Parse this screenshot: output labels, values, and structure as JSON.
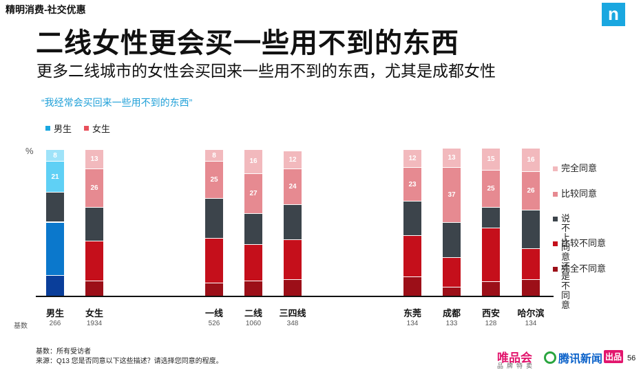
{
  "header": {
    "section_label": "精明消费-社交优惠",
    "logo_text": "n",
    "title": "二线女性更会买一些用不到的东西",
    "subtitle": "更多二线城市的女性会买回来一些用不到的东西，尤其是成都女性",
    "quote": "“我经常会买回来一些用不到的东西”"
  },
  "legend_top": [
    {
      "label": "男生",
      "color": "#1aa7e0"
    },
    {
      "label": "女生",
      "color": "#e8505b"
    }
  ],
  "unit_label": "%",
  "base_label": "基数",
  "colors": {
    "male_strong_disagree": "#0a3e9a",
    "male_somewhat_disagree": "#0b78cc",
    "male_neutral": "#3c444b",
    "male_somewhat_agree": "#5fd0f5",
    "male_strong_agree": "#9fe3f9",
    "female_strong_disagree": "#9c0f18",
    "female_somewhat_disagree": "#c50f1b",
    "female_neutral": "#3c444b",
    "female_somewhat_agree": "#e68a91",
    "female_strong_agree": "#f2b9bd"
  },
  "legend_right": [
    {
      "label": "完全同意",
      "color": "#f2b9bd"
    },
    {
      "label": "比较同意",
      "color": "#e68a91"
    },
    {
      "label": "说不上同意\n还是不同意",
      "color": "#3c444b"
    },
    {
      "label": "比较不同意",
      "color": "#c50f1b"
    },
    {
      "label": "完全不同意",
      "color": "#9c0f18"
    }
  ],
  "chart_data": {
    "type": "bar",
    "stacked": true,
    "unit": "%",
    "segment_order_bottom_to_top": [
      "完全不同意",
      "比较不同意",
      "说不上同意还是不同意",
      "比较同意",
      "完全同意"
    ],
    "categories": [
      "男生",
      "女生",
      "一线",
      "二线",
      "三四线",
      "东莞",
      "成都",
      "西安",
      "哈尔滨"
    ],
    "base": [
      "266",
      "1934",
      "526",
      "1060",
      "348",
      "134",
      "133",
      "128",
      "134"
    ],
    "palette": [
      "male",
      "female",
      "female",
      "female",
      "female",
      "female",
      "female",
      "female",
      "female"
    ],
    "series": [
      {
        "name": "完全不同意",
        "values": [
          14,
          10,
          9,
          10,
          11,
          13,
          6,
          10,
          11
        ]
      },
      {
        "name": "比较不同意",
        "values": [
          36,
          27,
          30,
          25,
          27,
          28,
          20,
          36,
          21
        ]
      },
      {
        "name": "说不上同意还是不同意",
        "values": [
          20,
          23,
          27,
          21,
          24,
          23,
          24,
          14,
          26
        ]
      },
      {
        "name": "比较同意",
        "values": [
          21,
          26,
          25,
          27,
          24,
          23,
          37,
          25,
          26
        ]
      },
      {
        "name": "完全同意",
        "values": [
          8,
          13,
          8,
          16,
          12,
          12,
          13,
          15,
          16
        ]
      }
    ],
    "ylim": [
      0,
      100
    ]
  },
  "footnotes": {
    "base": "基数：所有受访者",
    "source": "来源：Q13 您是否同意以下这些描述？请选择您同意的程度。"
  },
  "brands": {
    "vip": "唯品会",
    "vip_sub": "品牌特卖",
    "tencent": "腾讯新闻",
    "badge": "出品"
  },
  "page_number": "56"
}
